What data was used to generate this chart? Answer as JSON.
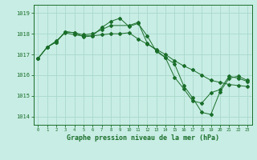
{
  "title": "Graphe pression niveau de la mer (hPa)",
  "bg_color": "#c8ede4",
  "grid_color": "#a8d8cc",
  "line_color": "#1a6e2a",
  "marker_color": "#1a6e2a",
  "xlim": [
    -0.5,
    23.5
  ],
  "ylim": [
    1013.6,
    1019.4
  ],
  "yticks": [
    1014,
    1015,
    1016,
    1017,
    1018,
    1019
  ],
  "xticks": [
    0,
    1,
    2,
    3,
    4,
    5,
    6,
    7,
    8,
    9,
    10,
    11,
    12,
    13,
    14,
    15,
    16,
    17,
    18,
    19,
    20,
    21,
    22,
    23
  ],
  "lines": [
    {
      "x": [
        0,
        1,
        2,
        3,
        4,
        5,
        6,
        7,
        8,
        10,
        11,
        12,
        13,
        14,
        15,
        16,
        17,
        18,
        19,
        20,
        21,
        22,
        23
      ],
      "y": [
        1016.8,
        1017.35,
        1017.6,
        1018.1,
        1018.05,
        1017.95,
        1018.0,
        1018.2,
        1018.4,
        1018.4,
        1018.55,
        1017.55,
        1017.2,
        1016.85,
        1016.55,
        1015.5,
        1014.9,
        1014.2,
        1014.1,
        1015.2,
        1015.85,
        1015.95,
        1015.75
      ]
    },
    {
      "x": [
        0,
        1,
        2,
        3,
        4,
        5,
        6,
        7,
        8,
        9,
        10,
        11,
        12,
        13,
        14,
        15,
        16,
        17,
        18,
        19,
        20,
        21,
        22,
        23
      ],
      "y": [
        1016.8,
        1017.35,
        1017.65,
        1018.05,
        1017.95,
        1017.9,
        1017.9,
        1017.95,
        1018.0,
        1018.0,
        1018.05,
        1017.75,
        1017.5,
        1017.25,
        1017.0,
        1016.7,
        1016.45,
        1016.25,
        1016.0,
        1015.75,
        1015.65,
        1015.55,
        1015.5,
        1015.45
      ]
    },
    {
      "x": [
        0,
        1,
        2,
        3,
        4,
        5,
        6,
        7,
        8,
        9,
        10,
        11,
        12,
        13,
        14,
        15,
        16,
        17,
        18,
        19,
        20,
        21,
        22,
        23
      ],
      "y": [
        1016.8,
        1017.35,
        1017.6,
        1018.1,
        1018.05,
        1017.85,
        1017.9,
        1018.3,
        1018.6,
        1018.75,
        1018.35,
        1018.5,
        1017.9,
        1017.15,
        1016.85,
        1015.9,
        1015.35,
        1014.75,
        1014.65,
        1015.15,
        1015.3,
        1015.95,
        1015.85,
        1015.7
      ]
    }
  ]
}
